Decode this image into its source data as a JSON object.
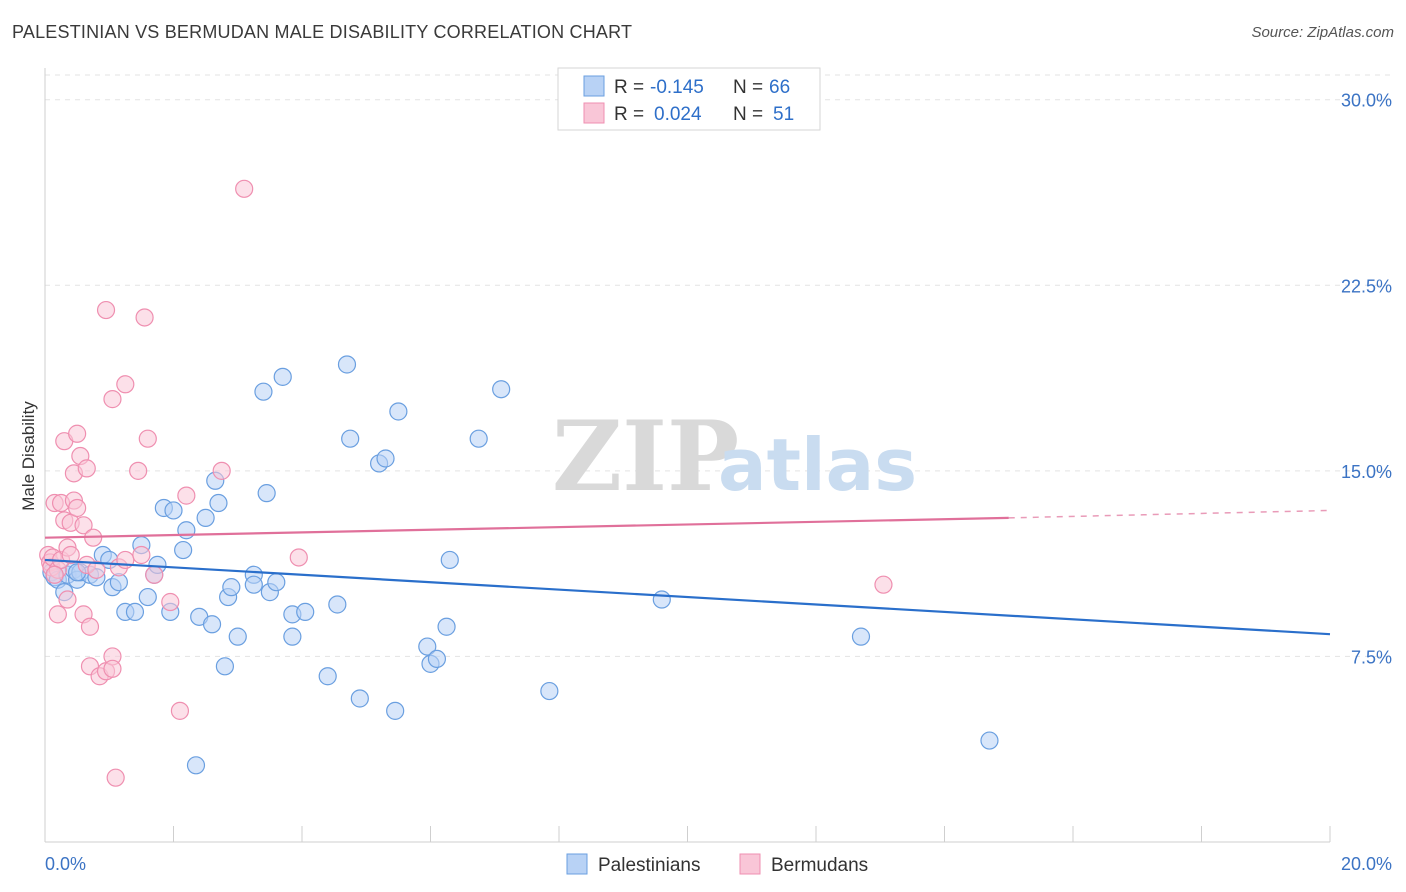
{
  "title": "PALESTINIAN VS BERMUDAN MALE DISABILITY CORRELATION CHART",
  "source": "Source: ZipAtlas.com",
  "watermark": {
    "zip": "ZIP",
    "atlas": "atlas"
  },
  "colors": {
    "blue": "#6a9fe0",
    "blue_fill": "#b8d2f5",
    "blue_line": "#2a6fcb",
    "pink": "#ef8fb0",
    "pink_fill": "#f9c6d7",
    "pink_line": "#e0709a",
    "grid": "#e3e3e3",
    "axis_text": "#3b73c4"
  },
  "legend": {
    "rows": [
      {
        "r_label": "R =",
        "r_value": "-0.145",
        "n_label": "N =",
        "n_value": "66"
      },
      {
        "r_label": "R =",
        "r_value": "0.024",
        "n_label": "N =",
        "n_value": "51"
      }
    ]
  },
  "chart_data": {
    "type": "scatter",
    "xlabel": "",
    "ylabel": "Male Disability",
    "xlim": [
      0,
      20
    ],
    "ylim": [
      0,
      31
    ],
    "x_tick_labels": [
      "0.0%",
      "20.0%"
    ],
    "y_ticks": [
      7.5,
      15.0,
      22.5,
      30.0
    ],
    "y_tick_labels": [
      "7.5%",
      "15.0%",
      "22.5%",
      "30.0%"
    ],
    "grid": true,
    "legend_position": "top-center",
    "series": [
      {
        "name": "Palestinians",
        "trend": {
          "x": [
            0,
            20
          ],
          "y": [
            11.4,
            8.4
          ],
          "dashed_from": null
        },
        "points": [
          [
            0.1,
            10.9
          ],
          [
            0.15,
            10.7
          ],
          [
            0.2,
            10.6
          ],
          [
            0.3,
            10.1
          ],
          [
            0.35,
            10.8
          ],
          [
            0.45,
            11.0
          ],
          [
            0.5,
            10.6
          ],
          [
            0.55,
            10.9
          ],
          [
            0.7,
            10.8
          ],
          [
            0.8,
            10.7
          ],
          [
            0.9,
            11.6
          ],
          [
            1.0,
            11.4
          ],
          [
            1.05,
            10.3
          ],
          [
            1.15,
            10.5
          ],
          [
            1.25,
            9.3
          ],
          [
            1.4,
            9.3
          ],
          [
            1.5,
            12.0
          ],
          [
            1.6,
            9.9
          ],
          [
            1.7,
            10.8
          ],
          [
            1.75,
            11.2
          ],
          [
            1.85,
            13.5
          ],
          [
            1.95,
            9.3
          ],
          [
            2.0,
            13.4
          ],
          [
            2.15,
            11.8
          ],
          [
            2.2,
            12.6
          ],
          [
            2.35,
            3.1
          ],
          [
            2.4,
            9.1
          ],
          [
            2.5,
            13.1
          ],
          [
            2.6,
            8.8
          ],
          [
            2.65,
            14.6
          ],
          [
            2.7,
            13.7
          ],
          [
            2.8,
            7.1
          ],
          [
            2.85,
            9.9
          ],
          [
            2.9,
            10.3
          ],
          [
            3.0,
            8.3
          ],
          [
            3.25,
            10.8
          ],
          [
            3.25,
            10.4
          ],
          [
            3.4,
            18.2
          ],
          [
            3.45,
            14.1
          ],
          [
            3.5,
            10.1
          ],
          [
            3.6,
            10.5
          ],
          [
            3.7,
            18.8
          ],
          [
            3.85,
            9.2
          ],
          [
            3.85,
            8.3
          ],
          [
            4.05,
            9.3
          ],
          [
            4.4,
            6.7
          ],
          [
            4.55,
            9.6
          ],
          [
            4.7,
            19.3
          ],
          [
            4.75,
            16.3
          ],
          [
            4.9,
            5.8
          ],
          [
            5.2,
            15.3
          ],
          [
            5.3,
            15.5
          ],
          [
            5.45,
            5.3
          ],
          [
            5.5,
            17.4
          ],
          [
            5.95,
            7.9
          ],
          [
            6.0,
            7.2
          ],
          [
            6.1,
            7.4
          ],
          [
            6.25,
            8.7
          ],
          [
            6.3,
            11.4
          ],
          [
            6.75,
            16.3
          ],
          [
            7.1,
            18.3
          ],
          [
            7.85,
            6.1
          ],
          [
            9.6,
            9.8
          ],
          [
            12.7,
            8.3
          ],
          [
            14.7,
            4.1
          ],
          [
            0.5,
            10.9
          ]
        ]
      },
      {
        "name": "Bermudans",
        "trend": {
          "x": [
            0,
            15
          ],
          "y": [
            12.3,
            13.1
          ],
          "dashed_from": 15,
          "dashed_to": [
            20,
            13.4
          ]
        },
        "points": [
          [
            0.05,
            11.6
          ],
          [
            0.08,
            11.3
          ],
          [
            0.1,
            11.1
          ],
          [
            0.12,
            11.5
          ],
          [
            0.15,
            13.7
          ],
          [
            0.2,
            9.2
          ],
          [
            0.2,
            11.0
          ],
          [
            0.25,
            13.7
          ],
          [
            0.25,
            11.4
          ],
          [
            0.3,
            16.2
          ],
          [
            0.3,
            13.0
          ],
          [
            0.35,
            11.9
          ],
          [
            0.35,
            9.8
          ],
          [
            0.4,
            12.9
          ],
          [
            0.4,
            11.6
          ],
          [
            0.45,
            13.8
          ],
          [
            0.45,
            14.9
          ],
          [
            0.5,
            13.5
          ],
          [
            0.5,
            16.5
          ],
          [
            0.55,
            15.6
          ],
          [
            0.6,
            9.2
          ],
          [
            0.6,
            12.8
          ],
          [
            0.65,
            15.1
          ],
          [
            0.65,
            11.2
          ],
          [
            0.7,
            7.1
          ],
          [
            0.7,
            8.7
          ],
          [
            0.75,
            12.3
          ],
          [
            0.8,
            11.0
          ],
          [
            0.85,
            6.7
          ],
          [
            0.95,
            6.9
          ],
          [
            0.95,
            21.5
          ],
          [
            1.05,
            7.5
          ],
          [
            1.05,
            7.0
          ],
          [
            1.05,
            17.9
          ],
          [
            1.1,
            2.6
          ],
          [
            1.15,
            11.1
          ],
          [
            1.25,
            18.5
          ],
          [
            1.25,
            11.4
          ],
          [
            1.45,
            15.0
          ],
          [
            1.5,
            11.6
          ],
          [
            1.55,
            21.2
          ],
          [
            1.6,
            16.3
          ],
          [
            1.7,
            10.8
          ],
          [
            1.95,
            9.7
          ],
          [
            2.1,
            5.3
          ],
          [
            2.2,
            14.0
          ],
          [
            2.75,
            15.0
          ],
          [
            3.1,
            26.4
          ],
          [
            3.95,
            11.5
          ],
          [
            13.05,
            10.4
          ],
          [
            0.15,
            10.8
          ]
        ]
      }
    ]
  }
}
